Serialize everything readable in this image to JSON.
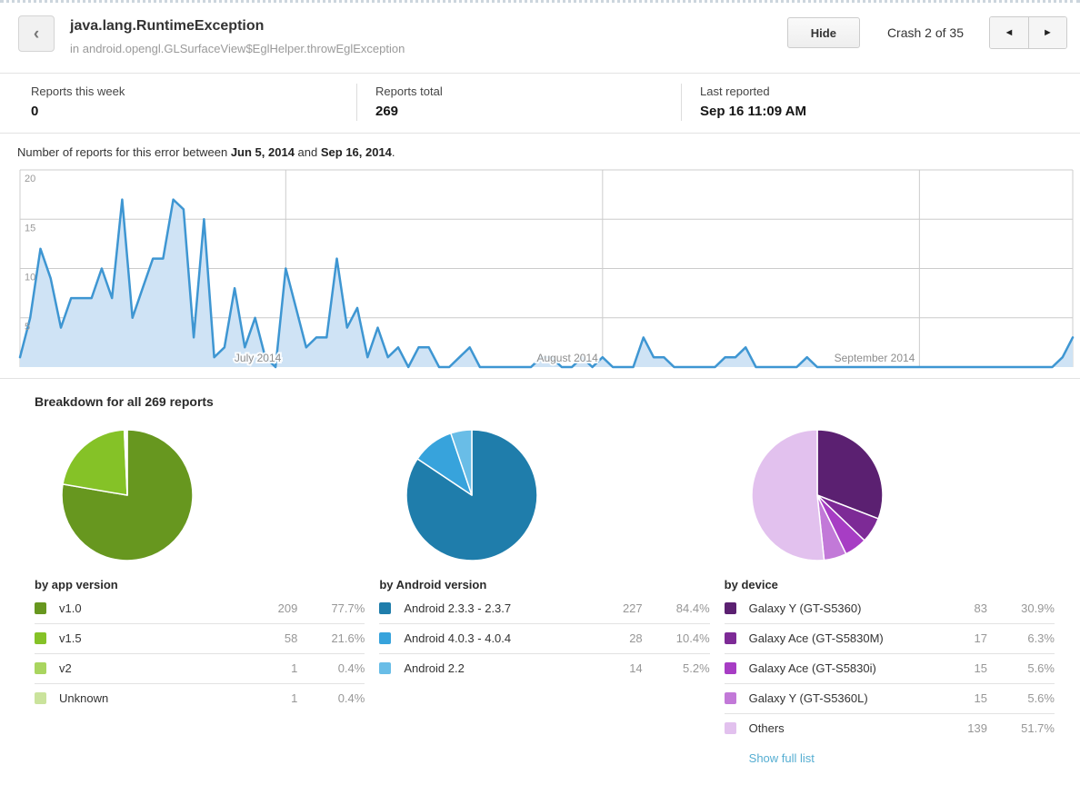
{
  "header": {
    "back_label": "‹",
    "title": "java.lang.RuntimeException",
    "subtitle": "in android.opengl.GLSurfaceView$EglHelper.throwEglException",
    "hide_button": "Hide",
    "crash_counter": "Crash 2 of 35",
    "prev_label": "◄",
    "next_label": "►"
  },
  "stats": [
    {
      "label": "Reports this week",
      "value": "0"
    },
    {
      "label": "Reports total",
      "value": "269"
    },
    {
      "label": "Last reported",
      "value": "Sep 16 11:09 AM"
    }
  ],
  "intro": {
    "text_before": "Number of reports for this error between ",
    "date_start": "Jun 5, 2014",
    "text_middle": " and ",
    "date_end": "Sep 16, 2014",
    "text_after": "."
  },
  "breakdown": {
    "heading": "Breakdown for all 269 reports",
    "show_full_list_label": "Show full list"
  },
  "chart_data": [
    {
      "type": "area",
      "name": "reports-over-time",
      "title": "Number of reports for this error between Jun 5, 2014 and Sep 16, 2014",
      "x_start": "Jun 5, 2014",
      "x_end": "Sep 16, 2014",
      "granularity": "daily",
      "ylim": [
        0,
        20
      ],
      "y_ticks": [
        5,
        10,
        15,
        20
      ],
      "month_labels": [
        {
          "label": "July 2014",
          "day_index": 26
        },
        {
          "label": "August 2014",
          "day_index": 57
        },
        {
          "label": "September 2014",
          "day_index": 88
        }
      ],
      "line_color": "#3e96d2",
      "fill_color": "#cfe3f5",
      "grid_color": "#cccccc",
      "values": [
        1,
        5,
        12,
        9,
        4,
        7,
        7,
        7,
        10,
        7,
        17,
        5,
        8,
        11,
        11,
        17,
        16,
        3,
        15,
        1,
        2,
        8,
        2,
        5,
        1,
        0,
        10,
        6,
        2,
        3,
        3,
        11,
        4,
        6,
        1,
        4,
        1,
        2,
        0,
        2,
        2,
        0,
        0,
        1,
        2,
        0,
        0,
        0,
        0,
        0,
        0,
        1,
        1,
        0,
        0,
        1,
        0,
        1,
        0,
        0,
        0,
        3,
        1,
        1,
        0,
        0,
        0,
        0,
        0,
        1,
        1,
        2,
        0,
        0,
        0,
        0,
        0,
        1,
        0,
        0,
        0,
        0,
        0,
        0,
        0,
        0,
        0,
        0,
        0,
        0,
        0,
        0,
        0,
        0,
        0,
        0,
        0,
        0,
        0,
        0,
        0,
        0,
        1,
        3
      ]
    },
    {
      "type": "pie",
      "name": "by-app-version",
      "title": "by app version",
      "labels": [
        "v1.0",
        "v1.5",
        "v2",
        "Unknown"
      ],
      "values": [
        209,
        58,
        1,
        1
      ],
      "percent_labels": [
        "77.7%",
        "21.6%",
        "0.4%",
        "0.4%"
      ],
      "colors": [
        "#67971f",
        "#85c227",
        "#a9d55f",
        "#cae39c"
      ],
      "show_full_list": false
    },
    {
      "type": "pie",
      "name": "by-android-version",
      "title": "by Android version",
      "labels": [
        "Android 2.3.3 - 2.3.7",
        "Android 4.0.3 - 4.0.4",
        "Android 2.2"
      ],
      "values": [
        227,
        28,
        14
      ],
      "percent_labels": [
        "84.4%",
        "10.4%",
        "5.2%"
      ],
      "colors": [
        "#1f7dab",
        "#37a3dc",
        "#69bde7"
      ],
      "show_full_list": false
    },
    {
      "type": "pie",
      "name": "by-device",
      "title": "by device",
      "labels": [
        "Galaxy Y (GT-S5360)",
        "Galaxy Ace (GT-S5830M)",
        "Galaxy Ace (GT-S5830i)",
        "Galaxy Y (GT-S5360L)",
        "Others"
      ],
      "values": [
        83,
        17,
        15,
        15,
        139
      ],
      "percent_labels": [
        "30.9%",
        "6.3%",
        "5.6%",
        "5.6%",
        "51.7%"
      ],
      "colors": [
        "#5b2071",
        "#7d2a96",
        "#a73dc4",
        "#c279d8",
        "#e2c1ee"
      ],
      "show_full_list": true
    }
  ],
  "colors": {
    "link": "#56aed2",
    "divider": "#e3e3e3"
  }
}
